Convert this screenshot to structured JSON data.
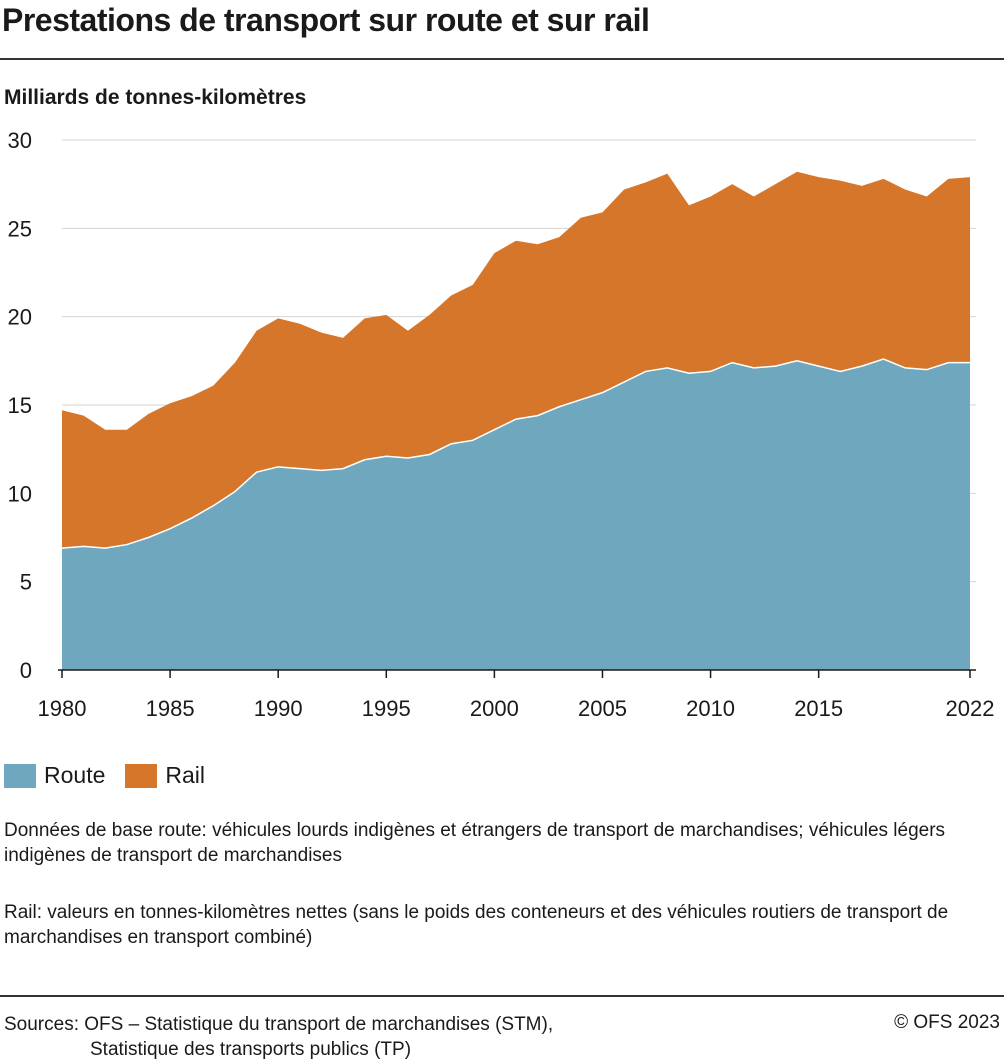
{
  "header": {
    "title": "Prestations de transport sur route et sur rail",
    "units": "Milliards de tonnes-kilomètres"
  },
  "legend": {
    "items": [
      {
        "label": "Route",
        "color": "#6fa8be"
      },
      {
        "label": "Rail",
        "color": "#d6762a"
      }
    ]
  },
  "notes": {
    "road": "Données de base route: véhicules lourds indigènes et étrangers de transport de marchandises; véhicules légers indigènes de transport de marchandises",
    "rail": "Rail: valeurs en tonnes-kilomètres nettes (sans le poids des conteneurs et des véhicules routiers de transport de marchandises en transport combiné)"
  },
  "footer": {
    "sources_line1": "Sources: OFS – Statistique du transport de marchandises (STM),",
    "sources_line2": "Statistique des transports publics (TP)",
    "copyright": "© OFS 2023"
  },
  "chart_data": {
    "type": "area",
    "stacked": true,
    "x": [
      1980,
      1981,
      1982,
      1983,
      1984,
      1985,
      1986,
      1987,
      1988,
      1989,
      1990,
      1991,
      1992,
      1993,
      1994,
      1995,
      1996,
      1997,
      1998,
      1999,
      2000,
      2001,
      2002,
      2003,
      2004,
      2005,
      2006,
      2007,
      2008,
      2009,
      2010,
      2011,
      2012,
      2013,
      2014,
      2015,
      2016,
      2017,
      2018,
      2019,
      2020,
      2021,
      2022
    ],
    "x_tick_labels": [
      "1980",
      "1985",
      "1990",
      "1995",
      "2000",
      "2005",
      "2010",
      "2015",
      "2022"
    ],
    "x_tick_values": [
      1980,
      1985,
      1990,
      1995,
      2000,
      2005,
      2010,
      2015,
      2022
    ],
    "y_ticks": [
      0,
      5,
      10,
      15,
      20,
      25,
      30
    ],
    "ylim": [
      0,
      30
    ],
    "xlim": [
      1980,
      2022
    ],
    "grid": "horizontal",
    "series": [
      {
        "name": "Route",
        "color": "#6fa8be",
        "values": [
          6.9,
          7.0,
          6.9,
          7.1,
          7.5,
          8.0,
          8.6,
          9.3,
          10.1,
          11.2,
          11.5,
          11.4,
          11.3,
          11.4,
          11.9,
          12.1,
          12.0,
          12.2,
          12.8,
          13.0,
          13.6,
          14.2,
          14.4,
          14.9,
          15.3,
          15.7,
          16.3,
          16.9,
          17.1,
          16.8,
          16.9,
          17.4,
          17.1,
          17.2,
          17.5,
          17.2,
          16.9,
          17.2,
          17.6,
          17.1,
          17.0,
          17.4,
          17.4
        ],
        "cumulative_total": false
      },
      {
        "name": "Rail",
        "color": "#d6762a",
        "values": [
          7.8,
          7.4,
          6.7,
          6.5,
          7.0,
          7.1,
          6.9,
          6.8,
          7.3,
          8.0,
          8.4,
          8.2,
          7.8,
          7.4,
          8.0,
          8.0,
          7.2,
          7.9,
          8.4,
          8.8,
          10.0,
          10.1,
          9.7,
          9.6,
          10.3,
          10.2,
          10.9,
          10.7,
          11.0,
          9.5,
          9.9,
          10.1,
          9.7,
          10.3,
          10.7,
          10.7,
          10.8,
          10.2,
          10.2,
          10.1,
          9.8,
          10.4,
          10.5
        ]
      }
    ]
  }
}
